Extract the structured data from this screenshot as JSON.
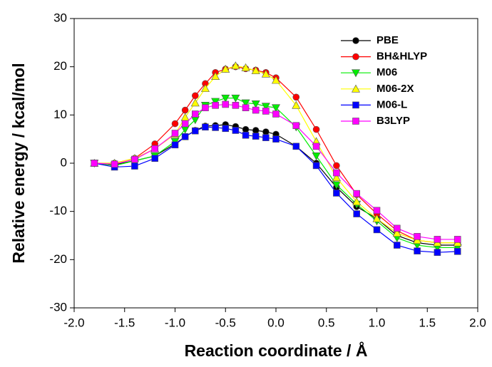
{
  "chart_data": {
    "type": "line",
    "xlabel": "Reaction coordinate / Å",
    "ylabel": "Relative energy / kcal/mol",
    "x": [
      -1.8,
      -1.6,
      -1.4,
      -1.2,
      -1.0,
      -0.9,
      -0.8,
      -0.7,
      -0.6,
      -0.5,
      -0.4,
      -0.3,
      -0.2,
      -0.1,
      0.0,
      0.2,
      0.4,
      0.6,
      0.8,
      1.0,
      1.2,
      1.4,
      1.6,
      1.8
    ],
    "series": [
      {
        "name": "PBE",
        "color": "#000000",
        "marker": "circle",
        "values": [
          0,
          -0.3,
          0.5,
          1.5,
          4,
          5.5,
          6.8,
          7.7,
          7.8,
          8,
          7.6,
          7,
          6.8,
          6.5,
          6,
          3.5,
          0,
          -5,
          -9,
          -11.5,
          -15,
          -16.5,
          -17,
          -17
        ]
      },
      {
        "name": "BH&HLYP",
        "color": "#ff0000",
        "marker": "circle",
        "values": [
          0,
          0,
          1,
          4,
          8.2,
          11,
          14,
          16.5,
          18.8,
          19.5,
          20,
          19.6,
          19.3,
          18.8,
          17.7,
          13.7,
          7,
          -0.5,
          -6.5,
          -10.5,
          -14,
          -16,
          -16.5,
          -16.5
        ]
      },
      {
        "name": "M06",
        "color": "#00ee00",
        "marker": "triangle-down",
        "values": [
          0,
          -0.5,
          0.5,
          1.5,
          4.5,
          7,
          9,
          12,
          12.8,
          13.5,
          13.5,
          12.5,
          12.3,
          11.8,
          11.5,
          7.5,
          1.5,
          -4.5,
          -8.5,
          -12,
          -15.5,
          -17,
          -17.5,
          -17.5
        ]
      },
      {
        "name": "M06-2X",
        "color": "#ffff00",
        "marker": "triangle-up",
        "values": [
          0,
          0,
          1,
          3,
          6,
          9.5,
          12.5,
          15.5,
          18,
          19.5,
          20.2,
          19.8,
          19.2,
          18.5,
          17.2,
          12,
          4.5,
          -3,
          -8,
          -11.5,
          -14.5,
          -16,
          -16.5,
          -16.5
        ]
      },
      {
        "name": "M06-L",
        "color": "#0000ff",
        "marker": "square",
        "values": [
          0,
          -0.8,
          -0.6,
          1,
          3.8,
          5.5,
          6.7,
          7.5,
          7.4,
          7.2,
          6.8,
          5.8,
          5.6,
          5.3,
          5,
          3.5,
          -0.5,
          -6.2,
          -10.5,
          -13.8,
          -17,
          -18.2,
          -18.5,
          -18.3
        ]
      },
      {
        "name": "B3LYP",
        "color": "#ff00ff",
        "marker": "square",
        "values": [
          0,
          -0.2,
          0.8,
          3,
          6.2,
          8.2,
          10.2,
          11.5,
          12,
          12.2,
          12,
          11.5,
          11,
          10.8,
          10.2,
          7.8,
          3.5,
          -2,
          -6.3,
          -9.8,
          -13.5,
          -15.2,
          -15.8,
          -15.8
        ]
      }
    ],
    "xlim": [
      -2,
      2
    ],
    "xticks": [
      {
        "value": -2,
        "label": "-2.0"
      },
      -1.5,
      {
        "value": -1,
        "label": "-1.0"
      },
      -0.5,
      {
        "value": 0,
        "label": "0.0"
      },
      0.5,
      {
        "value": 1,
        "label": "1.0"
      },
      1.5,
      {
        "value": 2,
        "label": "2.0"
      }
    ],
    "ylim": [
      -30,
      30
    ],
    "yticks": [
      -30,
      -20,
      -10,
      0,
      10,
      20,
      30
    ],
    "grid": false,
    "legend": "upper-right"
  }
}
